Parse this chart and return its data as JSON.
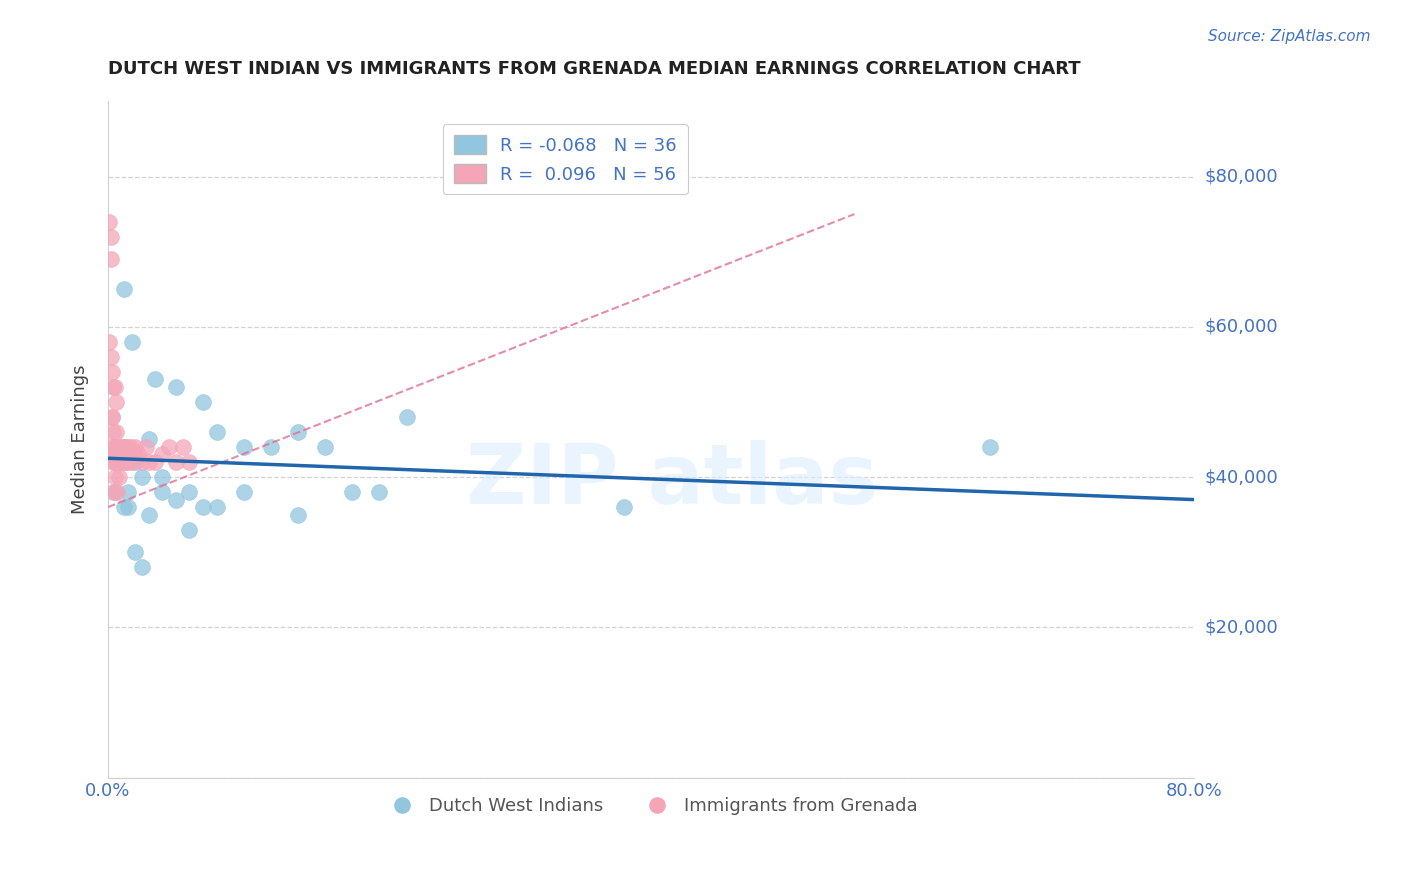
{
  "title": "DUTCH WEST INDIAN VS IMMIGRANTS FROM GRENADA MEDIAN EARNINGS CORRELATION CHART",
  "source_text": "Source: ZipAtlas.com",
  "ylabel": "Median Earnings",
  "xlabel": "",
  "xlim": [
    0.0,
    0.8
  ],
  "ylim": [
    0,
    90000
  ],
  "yticks": [
    0,
    20000,
    40000,
    60000,
    80000
  ],
  "ytick_labels": [
    "",
    "$20,000",
    "$40,000",
    "$60,000",
    "$80,000"
  ],
  "xticks": [
    0.0,
    0.8
  ],
  "xtick_labels": [
    "0.0%",
    "80.0%"
  ],
  "blue_R": -0.068,
  "blue_N": 36,
  "pink_R": 0.096,
  "pink_N": 56,
  "blue_color": "#92c5de",
  "pink_color": "#f4a6b8",
  "blue_line_color": "#2166ac",
  "pink_line_color": "#e07090",
  "title_color": "#222222",
  "axis_color": "#4472c4",
  "grid_color": "#c8c8c8",
  "legend_label_blue": "Dutch West Indians",
  "legend_label_pink": "Immigrants from Grenada",
  "blue_scatter_x": [
    0.005,
    0.008,
    0.01,
    0.012,
    0.015,
    0.018,
    0.02,
    0.025,
    0.03,
    0.035,
    0.04,
    0.05,
    0.06,
    0.07,
    0.08,
    0.1,
    0.12,
    0.14,
    0.16,
    0.18,
    0.02,
    0.025,
    0.03,
    0.04,
    0.05,
    0.06,
    0.07,
    0.08,
    0.1,
    0.14,
    0.2,
    0.22,
    0.38,
    0.65,
    0.012,
    0.015
  ],
  "blue_scatter_y": [
    38000,
    42000,
    44000,
    65000,
    38000,
    58000,
    42000,
    40000,
    45000,
    53000,
    38000,
    52000,
    38000,
    50000,
    46000,
    44000,
    44000,
    46000,
    44000,
    38000,
    30000,
    28000,
    35000,
    40000,
    37000,
    33000,
    36000,
    36000,
    38000,
    35000,
    38000,
    48000,
    36000,
    44000,
    36000,
    36000
  ],
  "pink_scatter_x": [
    0.001,
    0.002,
    0.002,
    0.003,
    0.003,
    0.004,
    0.004,
    0.005,
    0.005,
    0.005,
    0.006,
    0.006,
    0.007,
    0.007,
    0.008,
    0.008,
    0.009,
    0.009,
    0.01,
    0.01,
    0.011,
    0.011,
    0.012,
    0.012,
    0.013,
    0.013,
    0.014,
    0.015,
    0.015,
    0.016,
    0.017,
    0.018,
    0.019,
    0.02,
    0.022,
    0.025,
    0.028,
    0.03,
    0.035,
    0.04,
    0.045,
    0.05,
    0.055,
    0.06,
    0.001,
    0.002,
    0.003,
    0.004,
    0.005,
    0.006,
    0.003,
    0.004,
    0.005,
    0.006,
    0.007,
    0.008
  ],
  "pink_scatter_y": [
    74000,
    69000,
    72000,
    44000,
    48000,
    42000,
    38000,
    44000,
    42000,
    40000,
    44000,
    46000,
    42000,
    38000,
    40000,
    42000,
    44000,
    42000,
    43000,
    42000,
    44000,
    43000,
    42000,
    44000,
    42000,
    44000,
    43000,
    44000,
    42000,
    43000,
    44000,
    42000,
    43000,
    44000,
    43000,
    42000,
    44000,
    42000,
    42000,
    43000,
    44000,
    42000,
    44000,
    42000,
    58000,
    56000,
    54000,
    52000,
    52000,
    50000,
    48000,
    46000,
    44000,
    43000,
    43000,
    42000
  ],
  "blue_trend_x0": 0.0,
  "blue_trend_x1": 0.8,
  "blue_trend_y0": 42500,
  "blue_trend_y1": 37000,
  "pink_trend_x0": 0.0,
  "pink_trend_x1": 0.55,
  "pink_trend_y0": 36000,
  "pink_trend_y1": 75000
}
